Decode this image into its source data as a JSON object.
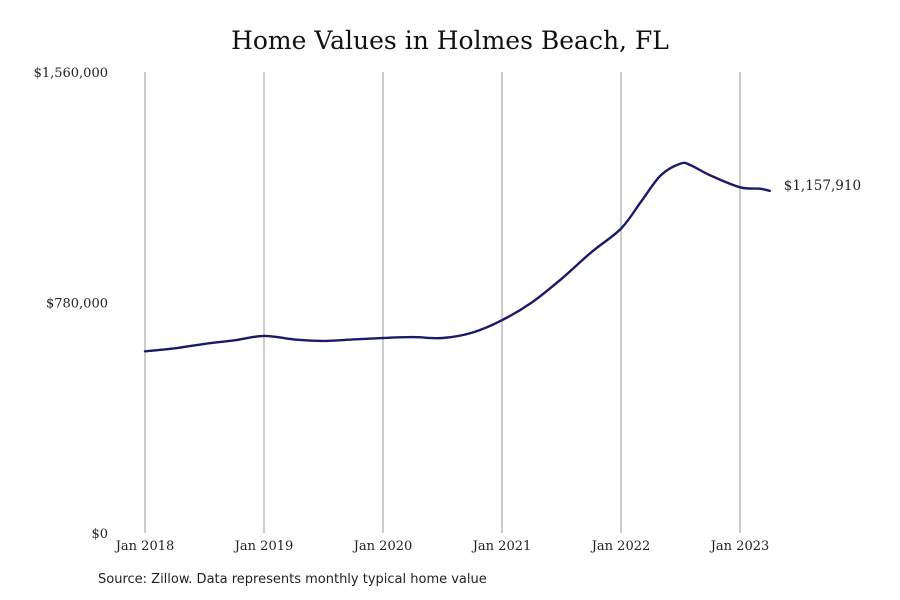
{
  "chart_data": {
    "type": "line",
    "title": "Home Values in Holmes Beach, FL",
    "x_tick_labels": [
      "Jan 2018",
      "Jan 2019",
      "Jan 2020",
      "Jan 2021",
      "Jan 2022",
      "Jan 2023"
    ],
    "y_tick_labels": [
      "$1,560,000",
      "$780,000",
      "$0"
    ],
    "y_ticks": [
      1560000,
      780000,
      0
    ],
    "ylim": [
      0,
      1560000
    ],
    "xlim": [
      "2018-01",
      "2023-04"
    ],
    "grid": "vertical lines at each January",
    "line_color": "#1a1a66",
    "end_value_label": "$1,157,910",
    "series": [
      {
        "x": [
          "2018-01",
          "2018-04",
          "2018-07",
          "2018-10",
          "2019-01",
          "2019-04",
          "2019-07",
          "2019-10",
          "2020-01",
          "2020-04",
          "2020-07",
          "2020-10",
          "2021-01",
          "2021-04",
          "2021-07",
          "2021-10",
          "2022-01",
          "2022-03",
          "2022-05",
          "2022-07",
          "2022-08",
          "2022-10",
          "2023-01",
          "2023-03",
          "2023-04"
        ],
        "values": [
          615000,
          625000,
          640000,
          652000,
          667000,
          655000,
          650000,
          655000,
          660000,
          663000,
          660000,
          678000,
          720000,
          780000,
          860000,
          950000,
          1030000,
          1120000,
          1210000,
          1250000,
          1245000,
          1210000,
          1170000,
          1165000,
          1157910
        ]
      }
    ]
  },
  "source_note": "Source: Zillow. Data represents monthly typical home value"
}
